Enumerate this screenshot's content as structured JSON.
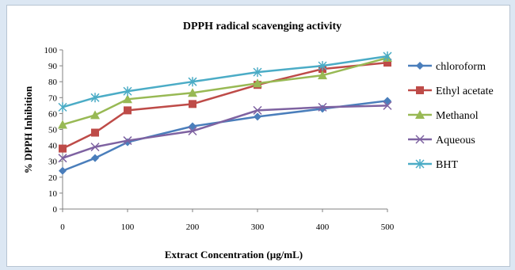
{
  "chart_data": {
    "type": "line",
    "title": "DPPH radical scavenging activity",
    "xlabel": "Extract Concentration (µg/mL)",
    "ylabel": "% DPPH Inhibition",
    "x": [
      0,
      50,
      100,
      200,
      300,
      400,
      500
    ],
    "x_ticks": [
      0,
      100,
      200,
      300,
      400,
      500
    ],
    "x_tick_labels": [
      "0",
      "100",
      "200",
      "300",
      "400",
      "500"
    ],
    "xlim": [
      0,
      500
    ],
    "ylim": [
      0,
      100
    ],
    "y_ticks": [
      0,
      10,
      20,
      30,
      40,
      50,
      60,
      70,
      80,
      90,
      100
    ],
    "y_tick_labels": [
      "0",
      "10",
      "20",
      "30",
      "40",
      "50",
      "60",
      "70",
      "80",
      "90",
      "100"
    ],
    "grid": false,
    "legend_position": "right",
    "series": [
      {
        "name": "chloroform",
        "color": "#4a7ebb",
        "marker": "diamond",
        "values": [
          24,
          32,
          42,
          52,
          58,
          63,
          68
        ]
      },
      {
        "name": "Ethyl acetate",
        "color": "#be4b48",
        "marker": "square",
        "values": [
          38,
          48,
          62,
          66,
          78,
          88,
          92
        ]
      },
      {
        "name": "Methanol",
        "color": "#98b954",
        "marker": "triangle",
        "values": [
          53,
          59,
          69,
          73,
          79,
          84,
          95
        ]
      },
      {
        "name": "Aqueous",
        "color": "#7e62a1",
        "marker": "x",
        "values": [
          32,
          39,
          43,
          49,
          62,
          64,
          65
        ]
      },
      {
        "name": "BHT",
        "color": "#4bacc6",
        "marker": "star",
        "values": [
          64,
          70,
          74,
          80,
          86,
          90,
          96
        ]
      }
    ]
  }
}
